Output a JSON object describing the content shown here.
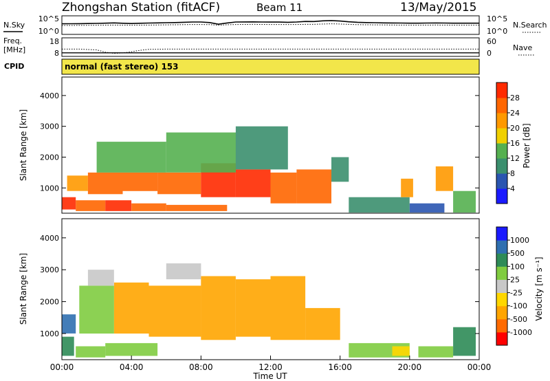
{
  "header": {
    "title": "Zhongshan Station (fitACF)",
    "beam": "Beam 11",
    "date": "13/May/2015"
  },
  "colors": {
    "power_scale": [
      "#1a1aff",
      "#2a55b0",
      "#3b8f6e",
      "#55b050",
      "#f0d000",
      "#ff9900",
      "#ff6600",
      "#ff2a00",
      "#e80000"
    ],
    "velocity_scale": [
      "#ff0000",
      "#ff6a00",
      "#ffa500",
      "#ffd700",
      "#c8c8c8",
      "#80cc40",
      "#2e8b57",
      "#2f6fb0",
      "#1a1aff"
    ],
    "cpid_fill": "#f2e64a"
  },
  "chart_data": [
    {
      "type": "line",
      "name_left": "N.Sky",
      "name_right": "N.Search",
      "ylim": [
        1,
        100000
      ],
      "left_ticks": [
        "10^5",
        "10^0"
      ],
      "right_ticks": [
        "10^5",
        "10^0"
      ],
      "right_legend_line": "dotted",
      "x": [
        0,
        0.5,
        1,
        1.5,
        2,
        2.5,
        3,
        3.5,
        4,
        4.5,
        5,
        5.5,
        6,
        6.5,
        7,
        7.5,
        8,
        8.5,
        9,
        9.5,
        10,
        10.5,
        11,
        11.5,
        12,
        12.5,
        13,
        13.5,
        14,
        14.5,
        15,
        15.5,
        16,
        16.5,
        17,
        17.5,
        18,
        18.5,
        19,
        19.5,
        20,
        20.5,
        21,
        21.5,
        22,
        22.5,
        23,
        23.5,
        24
      ],
      "n_sky": [
        800,
        850,
        900,
        1000,
        1100,
        1300,
        1600,
        1200,
        1000,
        1200,
        1400,
        1600,
        1800,
        2000,
        2500,
        3000,
        3000,
        2000,
        600,
        1500,
        3000,
        3200,
        3400,
        3000,
        2800,
        2800,
        2500,
        3000,
        4500,
        4200,
        7000,
        8500,
        6000,
        3500,
        2500,
        2000,
        1800,
        1600,
        1500,
        1400,
        1300,
        1300,
        1400,
        1500,
        1400,
        1300,
        1300,
        1300,
        1300
      ],
      "n_search": [
        250,
        250,
        260,
        270,
        280,
        300,
        320,
        300,
        280,
        300,
        320,
        350,
        380,
        400,
        450,
        500,
        500,
        450,
        300,
        400,
        500,
        520,
        540,
        520,
        500,
        500,
        480,
        500,
        550,
        550,
        700,
        800,
        700,
        550,
        450,
        400,
        380,
        360,
        340,
        320,
        300,
        300,
        320,
        330,
        320,
        300,
        300,
        300,
        300
      ]
    },
    {
      "type": "line",
      "name_left_top": "Freq.",
      "name_left_bottom": "[MHz]",
      "name_right": "Nave",
      "left_ticks": [
        "18",
        "8"
      ],
      "right_ticks": [
        "60",
        "0"
      ],
      "right_legend_line": "dotted",
      "freq_mhz": 10.5,
      "nave_x": [
        0,
        1,
        2,
        2.5,
        3,
        3.5,
        4,
        4.5,
        5,
        6,
        8,
        10,
        12,
        14,
        16,
        18,
        20,
        22,
        24
      ],
      "nave": [
        34,
        34,
        30,
        18,
        12,
        14,
        20,
        28,
        33,
        34,
        34,
        34,
        34,
        34,
        34,
        34,
        34,
        34,
        34
      ]
    },
    {
      "type": "table",
      "label": "CPID",
      "text": "normal (fast stereo) 153"
    },
    {
      "type": "heatmap",
      "quantity": "Power",
      "ylabel": "Slant Range [km]",
      "yticks": [
        "1000",
        "2000",
        "3000",
        "4000"
      ],
      "ylim": [
        180,
        4600
      ],
      "colorbar_label": "Power [dB]",
      "colorbar_ticks": [
        "4",
        "8",
        "12",
        "16",
        "20",
        "24",
        "28"
      ],
      "clim": [
        0,
        30
      ],
      "cells": [
        [
          0,
          0.8,
          300,
          700,
          24
        ],
        [
          0.8,
          2.5,
          250,
          600,
          22
        ],
        [
          2.5,
          4,
          250,
          600,
          25
        ],
        [
          4,
          6,
          250,
          500,
          22
        ],
        [
          6,
          9.5,
          250,
          450,
          20
        ],
        [
          0.3,
          1.5,
          900,
          1400,
          18
        ],
        [
          1.5,
          3.5,
          800,
          1500,
          22
        ],
        [
          3.5,
          5.5,
          900,
          1500,
          20
        ],
        [
          5.5,
          8,
          800,
          1500,
          23
        ],
        [
          8,
          10,
          700,
          1800,
          26
        ],
        [
          10,
          12,
          700,
          1600,
          24
        ],
        [
          12,
          13.5,
          500,
          1500,
          22
        ],
        [
          13.5,
          15.5,
          500,
          1600,
          20
        ],
        [
          15.5,
          16.5,
          1200,
          2000,
          9
        ],
        [
          2,
          6,
          1500,
          2500,
          11
        ],
        [
          6,
          10,
          1500,
          2800,
          10
        ],
        [
          10,
          13,
          1600,
          3000,
          8
        ],
        [
          16.5,
          20,
          200,
          700,
          8
        ],
        [
          20,
          22,
          200,
          500,
          6
        ],
        [
          19.5,
          20.2,
          700,
          1300,
          18
        ],
        [
          21.5,
          22.5,
          900,
          1700,
          18
        ],
        [
          22.5,
          23.8,
          200,
          900,
          12
        ]
      ]
    },
    {
      "type": "heatmap",
      "quantity": "Velocity",
      "ylabel": "Slant Range [km]",
      "yticks": [
        "1000",
        "2000",
        "3000",
        "4000"
      ],
      "ylim": [
        180,
        4600
      ],
      "xlabel": "Time UT",
      "xticks": [
        "00:00",
        "04:00",
        "08:00",
        "12:00",
        "16:00",
        "20:00",
        "00:00"
      ],
      "xlim": [
        0,
        24
      ],
      "colorbar_label": "Velocity [m s⁻¹]",
      "colorbar_ticks": [
        "-1000",
        "-500",
        "-100",
        "-25",
        "25",
        "100",
        "500",
        "1000"
      ],
      "cells": [
        [
          0,
          0.7,
          300,
          900,
          500
        ],
        [
          0,
          0.8,
          1000,
          1600,
          1000
        ],
        [
          0.8,
          2.5,
          250,
          600,
          100
        ],
        [
          2.5,
          5.5,
          300,
          700,
          100
        ],
        [
          1,
          3,
          1000,
          2500,
          100
        ],
        [
          3,
          5,
          1000,
          2600,
          -100
        ],
        [
          5,
          8,
          900,
          2500,
          -100
        ],
        [
          8,
          10,
          800,
          2800,
          -100
        ],
        [
          10,
          12,
          900,
          2700,
          -100
        ],
        [
          12,
          14,
          800,
          2800,
          -100
        ],
        [
          14,
          16,
          800,
          1800,
          -100
        ],
        [
          1.5,
          3,
          2500,
          3000,
          25
        ],
        [
          6,
          8,
          2700,
          3200,
          25
        ],
        [
          16.5,
          20,
          250,
          700,
          100
        ],
        [
          19,
          20,
          300,
          600,
          -25
        ],
        [
          20.5,
          22.5,
          250,
          600,
          100
        ],
        [
          22.5,
          23.8,
          300,
          1200,
          500
        ]
      ]
    }
  ]
}
